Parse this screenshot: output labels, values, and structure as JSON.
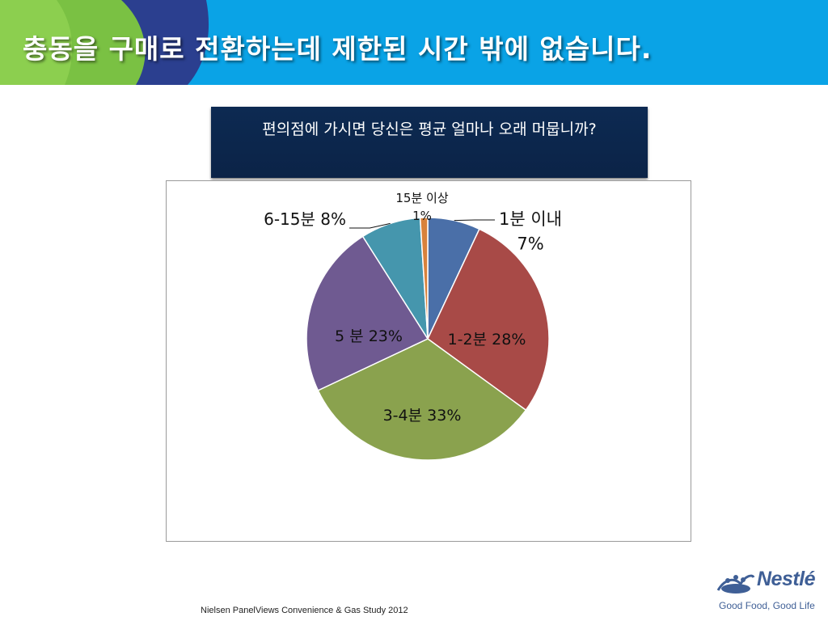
{
  "slide": {
    "title": "충동을 구매로 전환하는데 제한된 시간 밖에 없습니다.",
    "question": "편의점에 가시면 당신은 평균 얼마나 오래 머뭅니까?",
    "source": "Nielsen PanelViews  Convenience & Gas Study 2012"
  },
  "brand": {
    "name": "Nestlé",
    "tagline": "Good Food, Good Life",
    "logo_icon": "nest-birds-icon"
  },
  "colors": {
    "header_blue": "#0aa3e6",
    "header_green": "#7ac143",
    "header_navy": "#2b3f8f",
    "question_bg": "#0d2a52"
  },
  "chart_data": {
    "type": "pie",
    "start_angle_deg": 0,
    "direction": "clockwise",
    "slices": [
      {
        "label": "1분 이내",
        "value": 7,
        "pct_label": "7%",
        "color": "#4a6fa8"
      },
      {
        "label": "1-2분",
        "value": 28,
        "pct_label": "28%",
        "color": "#a84a47"
      },
      {
        "label": "3-4분",
        "value": 33,
        "pct_label": "33%",
        "color": "#8aa24e"
      },
      {
        "label": "5 분",
        "value": 23,
        "pct_label": "23%",
        "color": "#6f5a91"
      },
      {
        "label": "6-15분",
        "value": 8,
        "pct_label": "8%",
        "color": "#4596ad"
      },
      {
        "label": "15분 이상",
        "value": 1,
        "pct_label": "1%",
        "color": "#d8823c"
      }
    ]
  }
}
